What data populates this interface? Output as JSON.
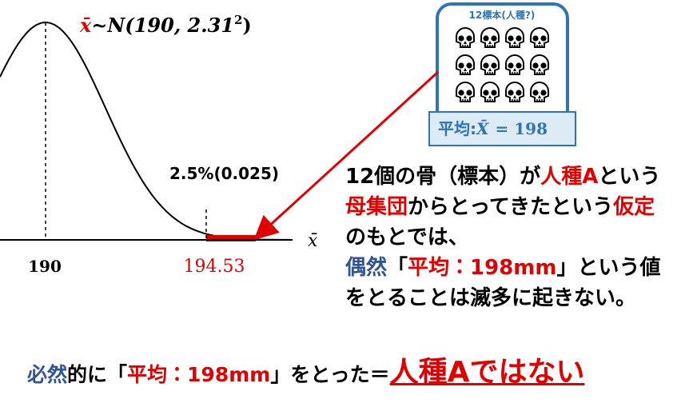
{
  "formula": {
    "variable": "x̄",
    "rest": "~N(190, 2.31",
    "exponent": "2",
    "close": ")"
  },
  "tail_label": "2.5%(0.025)",
  "axis": {
    "mean_label": "190",
    "critical_label": "194.53",
    "variable_label": "x̄"
  },
  "sample_box": {
    "title": "12標本(人種?)",
    "mean_prefix": "平均:",
    "mean_symbol": "X̄",
    "mean_value": "= 198"
  },
  "paragraph": [
    [
      {
        "text": "12個の骨（標本）が",
        "style": "black"
      },
      {
        "text": "人種A",
        "style": "red"
      },
      {
        "text": "という",
        "style": "black"
      }
    ],
    [
      {
        "text": "母集団",
        "style": "red"
      },
      {
        "text": "からとってきたという",
        "style": "black"
      },
      {
        "text": "仮定",
        "style": "red"
      }
    ],
    [
      {
        "text": "のもとでは、",
        "style": "black"
      }
    ],
    [
      {
        "text": "偶然",
        "style": "blue"
      },
      {
        "text": "「",
        "style": "black"
      },
      {
        "text": "平均：198mm",
        "style": "red"
      },
      {
        "text": "」という値",
        "style": "black"
      }
    ],
    [
      {
        "text": "をとることは滅多に起きない。",
        "style": "black"
      }
    ]
  ],
  "conclusion": [
    {
      "text": "必然",
      "style": "blue"
    },
    {
      "text": "的に「",
      "style": "black"
    },
    {
      "text": "平均：198mm",
      "style": "red"
    },
    {
      "text": "」をとった＝",
      "style": "black"
    },
    {
      "text": "人種Aではない",
      "style": "red big"
    }
  ]
}
